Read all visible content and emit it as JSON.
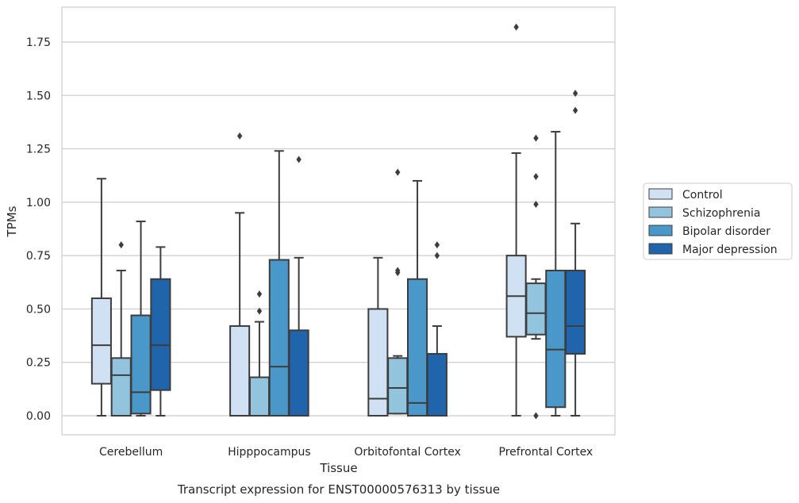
{
  "chart_data": {
    "type": "box",
    "title": "",
    "caption": "Transcript expression for ENST00000576313 by tissue",
    "xlabel": "Tissue",
    "ylabel": "TPMs",
    "ylim": [
      -0.085,
      1.915
    ],
    "yticks": [
      "0.00",
      "0.25",
      "0.50",
      "0.75",
      "1.00",
      "1.25",
      "1.50",
      "1.75"
    ],
    "ytick_values": [
      0,
      0.25,
      0.5,
      0.75,
      1.0,
      1.25,
      1.5,
      1.75
    ],
    "grid": true,
    "legend_position": "right",
    "categories": [
      "Cerebellum",
      "Hipppocampus",
      "Orbitofontal Cortex",
      "Prefrontal Cortex"
    ],
    "series": [
      {
        "name": "Control",
        "color": "#cfe1f2",
        "boxes": [
          {
            "min": 0.0,
            "q1": 0.15,
            "median": 0.33,
            "q3": 0.55,
            "max": 1.11,
            "outliers": []
          },
          {
            "min": 0.0,
            "q1": 0.0,
            "median": 0.0,
            "q3": 0.42,
            "max": 0.95,
            "outliers": [
              1.31
            ]
          },
          {
            "min": 0.0,
            "q1": 0.0,
            "median": 0.08,
            "q3": 0.5,
            "max": 0.74,
            "outliers": []
          },
          {
            "min": 0.0,
            "q1": 0.37,
            "median": 0.56,
            "q3": 0.75,
            "max": 1.23,
            "outliers": [
              1.82
            ]
          }
        ]
      },
      {
        "name": "Schizophrenia",
        "color": "#93c4de",
        "boxes": [
          {
            "min": 0.0,
            "q1": 0.0,
            "median": 0.19,
            "q3": 0.27,
            "max": 0.68,
            "outliers": [
              0.8
            ]
          },
          {
            "min": 0.0,
            "q1": 0.0,
            "median": 0.0,
            "q3": 0.18,
            "max": 0.44,
            "outliers": [
              0.49,
              0.57
            ]
          },
          {
            "min": 0.01,
            "q1": 0.01,
            "median": 0.13,
            "q3": 0.27,
            "max": 0.28,
            "outliers": [
              0.67,
              0.68,
              1.14
            ]
          },
          {
            "min": 0.36,
            "q1": 0.38,
            "median": 0.48,
            "q3": 0.62,
            "max": 0.64,
            "outliers": [
              0.0,
              0.99,
              1.12,
              1.3
            ]
          }
        ]
      },
      {
        "name": "Bipolar disorder",
        "color": "#4a98c9",
        "boxes": [
          {
            "min": 0.0,
            "q1": 0.01,
            "median": 0.11,
            "q3": 0.47,
            "max": 0.91,
            "outliers": []
          },
          {
            "min": 0.0,
            "q1": 0.0,
            "median": 0.23,
            "q3": 0.73,
            "max": 1.24,
            "outliers": []
          },
          {
            "min": 0.0,
            "q1": 0.0,
            "median": 0.06,
            "q3": 0.64,
            "max": 1.1,
            "outliers": []
          },
          {
            "min": 0.0,
            "q1": 0.04,
            "median": 0.31,
            "q3": 0.68,
            "max": 1.33,
            "outliers": []
          }
        ]
      },
      {
        "name": "Major depression",
        "color": "#2064ab",
        "boxes": [
          {
            "min": 0.0,
            "q1": 0.12,
            "median": 0.33,
            "q3": 0.64,
            "max": 0.79,
            "outliers": []
          },
          {
            "min": 0.0,
            "q1": 0.0,
            "median": 0.0,
            "q3": 0.4,
            "max": 0.74,
            "outliers": [
              1.2
            ]
          },
          {
            "min": 0.0,
            "q1": 0.0,
            "median": 0.0,
            "q3": 0.29,
            "max": 0.42,
            "outliers": [
              0.75,
              0.8
            ]
          },
          {
            "min": 0.0,
            "q1": 0.29,
            "median": 0.42,
            "q3": 0.68,
            "max": 0.9,
            "outliers": [
              1.43,
              1.51
            ]
          }
        ]
      }
    ]
  }
}
